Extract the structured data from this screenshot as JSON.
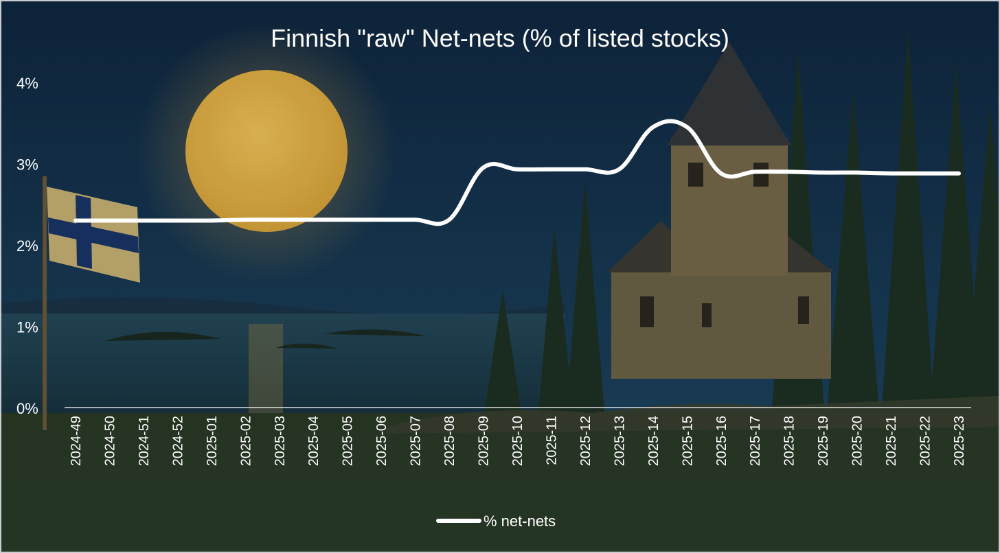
{
  "colors": {
    "line": "#ffffff",
    "sky_top": "#0f2740",
    "sky_bottom": "#1f4a66",
    "moon": "#d9a53a",
    "flag_field": "#c8b274",
    "flag_cross": "#1a3568",
    "forest": "#1e3222",
    "water": "#25495a",
    "ground": "#2b3a24"
  },
  "chart_data": {
    "type": "line",
    "title": "Finnish \"raw\" Net-nets (% of listed stocks)",
    "xlabel": "",
    "ylabel": "",
    "ylim": [
      0,
      0.045
    ],
    "yticks": [
      {
        "value": 0,
        "label": "0%"
      },
      {
        "value": 0.01,
        "label": "1%"
      },
      {
        "value": 0.02,
        "label": "2%"
      },
      {
        "value": 0.03,
        "label": "3%"
      },
      {
        "value": 0.04,
        "label": "4%"
      }
    ],
    "grid": false,
    "legend_position": "bottom",
    "categories": [
      "2024-49",
      "2024-50",
      "2024-51",
      "2024-52",
      "2025-01",
      "2025-02",
      "2025-03",
      "2025-04",
      "2025-05",
      "2025-06",
      "2025-07",
      "2025-08",
      "2025-09",
      "2025-10",
      "2025-11",
      "2025-12",
      "2025-13",
      "2025-14",
      "2025-15",
      "2025-16",
      "2025-17",
      "2025-18",
      "2025-19",
      "2025-20",
      "2025-21",
      "2025-22",
      "2025-23"
    ],
    "series": [
      {
        "name": "% net-nets",
        "values": [
          0.023,
          0.023,
          0.023,
          0.023,
          0.023,
          0.0231,
          0.0231,
          0.0231,
          0.0231,
          0.0231,
          0.0231,
          0.0231,
          0.0295,
          0.0293,
          0.0293,
          0.0293,
          0.0293,
          0.0345,
          0.0345,
          0.0288,
          0.029,
          0.029,
          0.0289,
          0.0289,
          0.0288,
          0.0288,
          0.0288
        ]
      }
    ]
  }
}
